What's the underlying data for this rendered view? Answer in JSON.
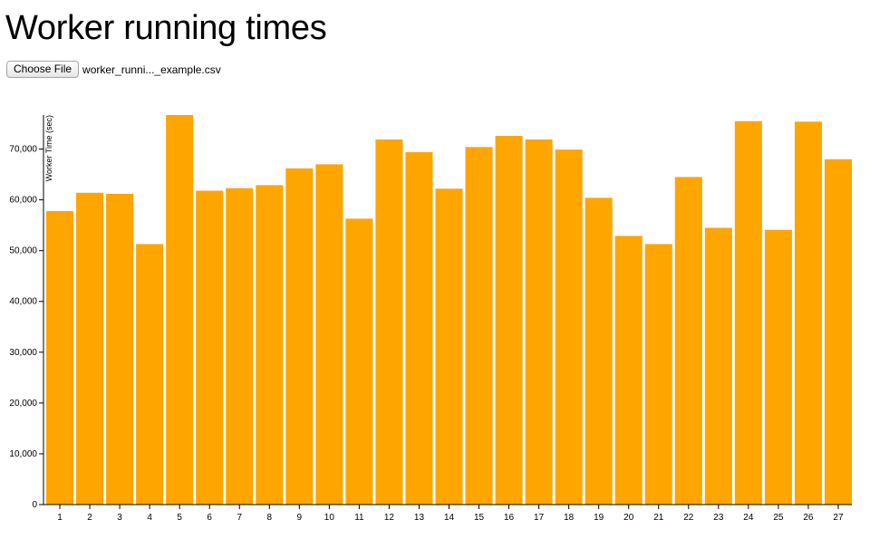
{
  "page": {
    "title": "Worker running times"
  },
  "file_input": {
    "button_label": "Choose File",
    "file_name": "worker_runni..._example.csv"
  },
  "colors": {
    "bar": "#ffa500",
    "axis": "#000000"
  },
  "chart_data": {
    "type": "bar",
    "title": "",
    "xlabel": "",
    "ylabel": "Worker Time (sec)",
    "categories": [
      "1",
      "2",
      "3",
      "4",
      "5",
      "6",
      "7",
      "8",
      "9",
      "10",
      "11",
      "12",
      "13",
      "14",
      "15",
      "16",
      "17",
      "18",
      "19",
      "20",
      "21",
      "22",
      "23",
      "24",
      "25",
      "26",
      "27"
    ],
    "values": [
      57800,
      61400,
      61200,
      51300,
      76700,
      61800,
      62300,
      62900,
      66200,
      67000,
      56300,
      71900,
      69400,
      62200,
      70400,
      72600,
      71900,
      69900,
      60400,
      52900,
      51300,
      64500,
      54500,
      75500,
      54100,
      75400,
      68000
    ],
    "y_ticks": [
      0,
      10000,
      20000,
      30000,
      40000,
      50000,
      60000,
      70000
    ],
    "y_tick_labels": [
      "0",
      "10,000",
      "20,000",
      "30,000",
      "40,000",
      "50,000",
      "60,000",
      "70,000"
    ],
    "ylim": [
      0,
      76700
    ],
    "grid": false,
    "legend": "none"
  }
}
